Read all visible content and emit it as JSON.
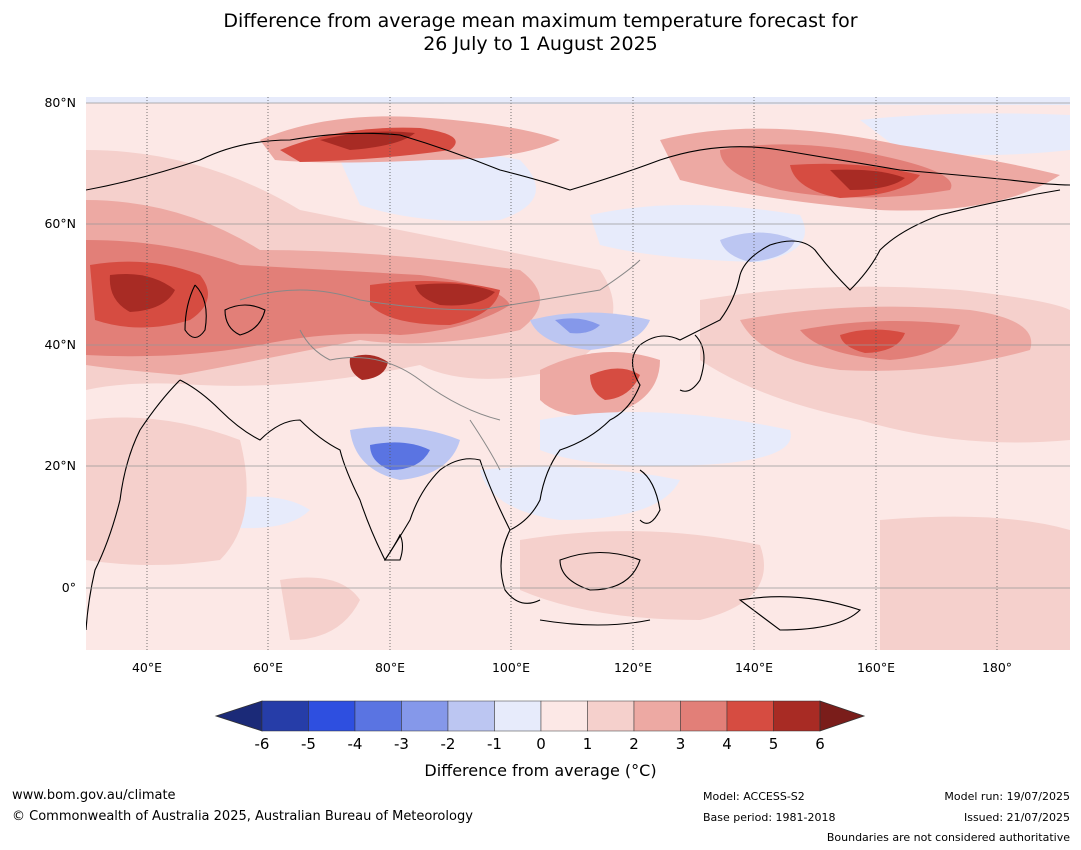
{
  "title": {
    "line1": "Difference from average mean maximum temperature forecast for",
    "line2": "26 July to 1 August 2025"
  },
  "map": {
    "region": "Asia",
    "lon_ticks": [
      "40°E",
      "60°E",
      "80°E",
      "100°E",
      "120°E",
      "140°E",
      "160°E",
      "180°"
    ],
    "lat_ticks": [
      "80°N",
      "60°N",
      "40°N",
      "20°N",
      "0°"
    ],
    "extent": {
      "lon_min": 30,
      "lon_max": 192,
      "lat_min": -10,
      "lat_max": 81
    }
  },
  "colorbar": {
    "title": "Difference from average (°C)",
    "labels": [
      "-6",
      "-5",
      "-4",
      "-3",
      "-2",
      "-1",
      "0",
      "1",
      "2",
      "3",
      "4",
      "5",
      "6"
    ],
    "colors": [
      "#263da8",
      "#2e4fe0",
      "#5a74e2",
      "#8598ea",
      "#bcc6f2",
      "#e7ebfb",
      "#fce8e6",
      "#f5d0cc",
      "#eda9a3",
      "#e27f78",
      "#d64c41",
      "#a82b24"
    ],
    "under_color": "#1b2a78",
    "over_color": "#7a1d1a"
  },
  "footer": {
    "url": "www.bom.gov.au/climate",
    "copyright": "© Commonwealth of Australia 2025, Australian Bureau of Meteorology",
    "model": "Model: ACCESS-S2",
    "base_period": "Base period: 1981-2018",
    "model_run": "Model run: 19/07/2025",
    "issued": "Issued: 21/07/2025",
    "disclaimer": "Boundaries are not considered authoritative"
  }
}
